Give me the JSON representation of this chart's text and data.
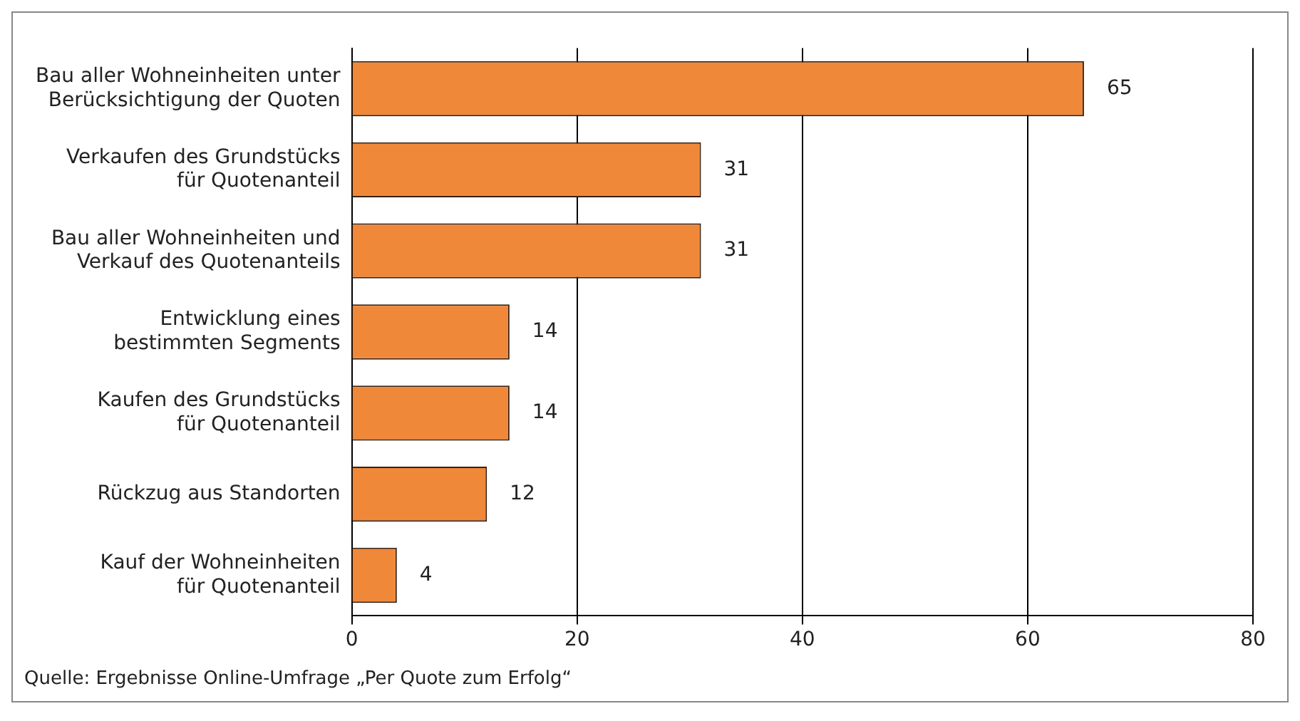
{
  "chart_data": {
    "type": "bar",
    "orientation": "horizontal",
    "categories": [
      "Bau aller Wohneinheiten unter\nBerücksichtigung der Quoten",
      "Verkaufen des Grundstücks\nfür Quotenanteil",
      "Bau aller Wohneinheiten und\nVerkauf des Quotenanteils",
      "Entwicklung eines\nbestimmten Segments",
      "Kaufen des Grundstücks\nfür Quotenanteil",
      "Rückzug aus Standorten",
      "Kauf der Wohneinheiten\nfür Quotenanteil"
    ],
    "values": [
      65,
      31,
      31,
      14,
      14,
      12,
      4
    ],
    "color": "#f0883a",
    "xlim": [
      0,
      80
    ],
    "xticks": [
      0,
      20,
      40,
      60,
      80
    ],
    "grid": "x",
    "legend": false,
    "data_labels": true,
    "annotations": [
      "Quelle: Ergebnisse Online-Umfrage „Per Quote zum Erfolg“"
    ]
  }
}
